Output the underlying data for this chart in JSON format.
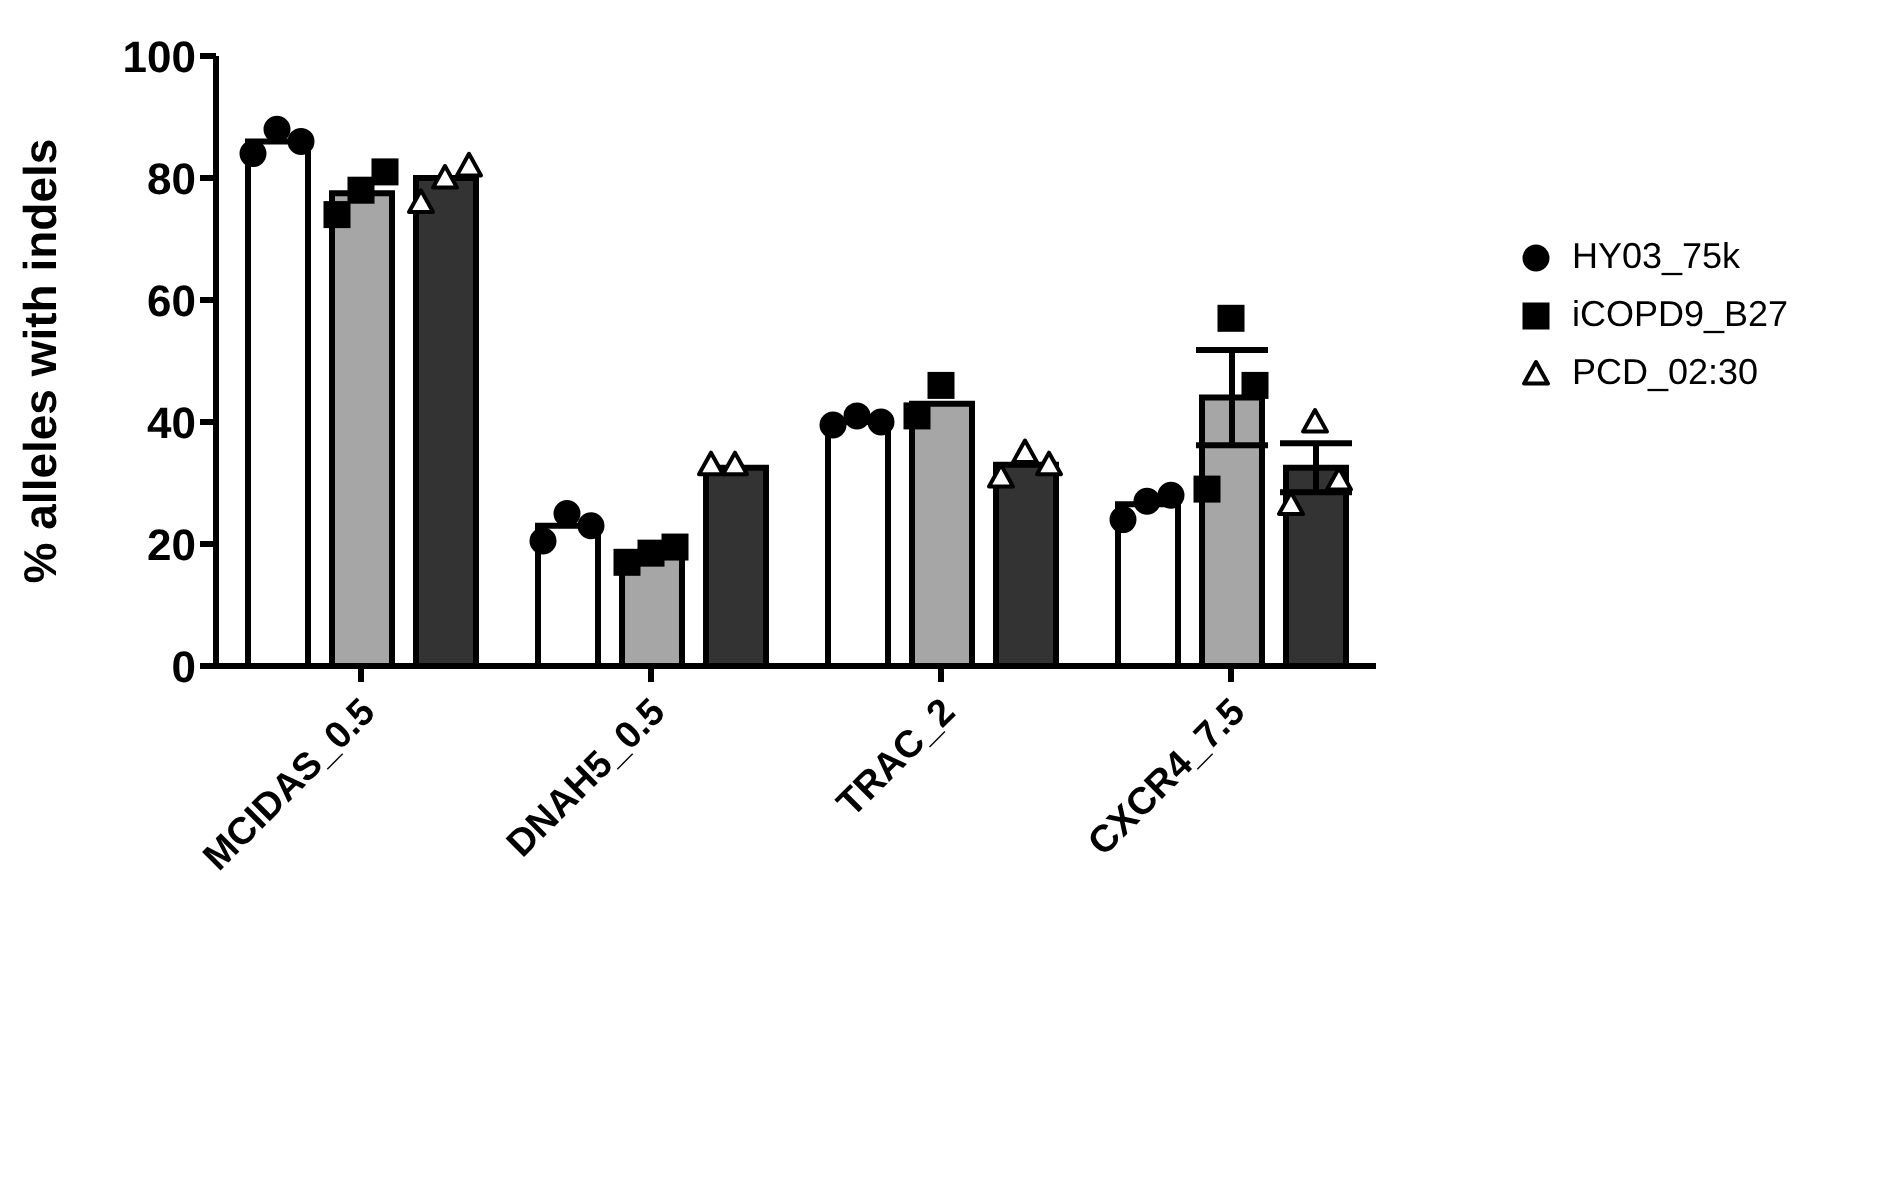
{
  "chart_data": {
    "type": "bar",
    "ylabel": "% alleles with indels",
    "categories": [
      "MCIDAS_0.5",
      "DNAH5_0.5",
      "TRAC_2",
      "CXCR4_7.5"
    ],
    "ylim": [
      0,
      100
    ],
    "yticks": [
      0,
      20,
      40,
      60,
      80,
      100
    ],
    "grid": false,
    "legend": "right",
    "series": [
      {
        "color": "#ffffff",
        "values": [
          86,
          23,
          40,
          26.5
        ],
        "errors": [
          null,
          null,
          null,
          null
        ]
      },
      {
        "color": "#a6a6a6",
        "values": [
          77.5,
          18.5,
          43,
          44
        ],
        "errors": [
          null,
          null,
          null,
          7.8
        ]
      },
      {
        "color": "#333333",
        "values": [
          80,
          32.5,
          33,
          32.5
        ],
        "errors": [
          null,
          null,
          null,
          4
        ]
      },
      {
        "type": "scatter",
        "name": "HY03_75k",
        "marker": "circle",
        "color": "#000000",
        "x": [
          "MCIDAS_0.5",
          "MCIDAS_0.5",
          "MCIDAS_0.5",
          "DNAH5_0.5",
          "DNAH5_0.5",
          "DNAH5_0.5",
          "TRAC_2",
          "TRAC_2",
          "TRAC_2",
          "CXCR4_7.5",
          "CXCR4_7.5",
          "CXCR4_7.5"
        ],
        "values": [
          84,
          88,
          86,
          20.5,
          25,
          23,
          39.5,
          41,
          40,
          24,
          27,
          28
        ]
      },
      {
        "type": "scatter",
        "name": "iCOPD9_B27",
        "marker": "square",
        "color": "#000000",
        "x": [
          "MCIDAS_0.5",
          "MCIDAS_0.5",
          "MCIDAS_0.5",
          "DNAH5_0.5",
          "DNAH5_0.5",
          "DNAH5_0.5",
          "TRAC_2",
          "TRAC_2",
          "TRAC_2",
          "CXCR4_7.5",
          "CXCR4_7.5",
          "CXCR4_7.5"
        ],
        "values": [
          74,
          78,
          81,
          17,
          18.5,
          19.5,
          41,
          46,
          null,
          29,
          57,
          46
        ]
      },
      {
        "type": "scatter",
        "name": "PCD_02:30",
        "marker": "triangle",
        "color": "#ffffff",
        "x": [
          "MCIDAS_0.5",
          "MCIDAS_0.5",
          "MCIDAS_0.5",
          "DNAH5_0.5",
          "DNAH5_0.5",
          "DNAH5_0.5",
          "TRAC_2",
          "TRAC_2",
          "TRAC_2",
          "CXCR4_7.5",
          "CXCR4_7.5",
          "CXCR4_7.5"
        ],
        "values": [
          76,
          80,
          82,
          33,
          33,
          null,
          31,
          35,
          33,
          26.5,
          40,
          30.5
        ]
      }
    ]
  }
}
